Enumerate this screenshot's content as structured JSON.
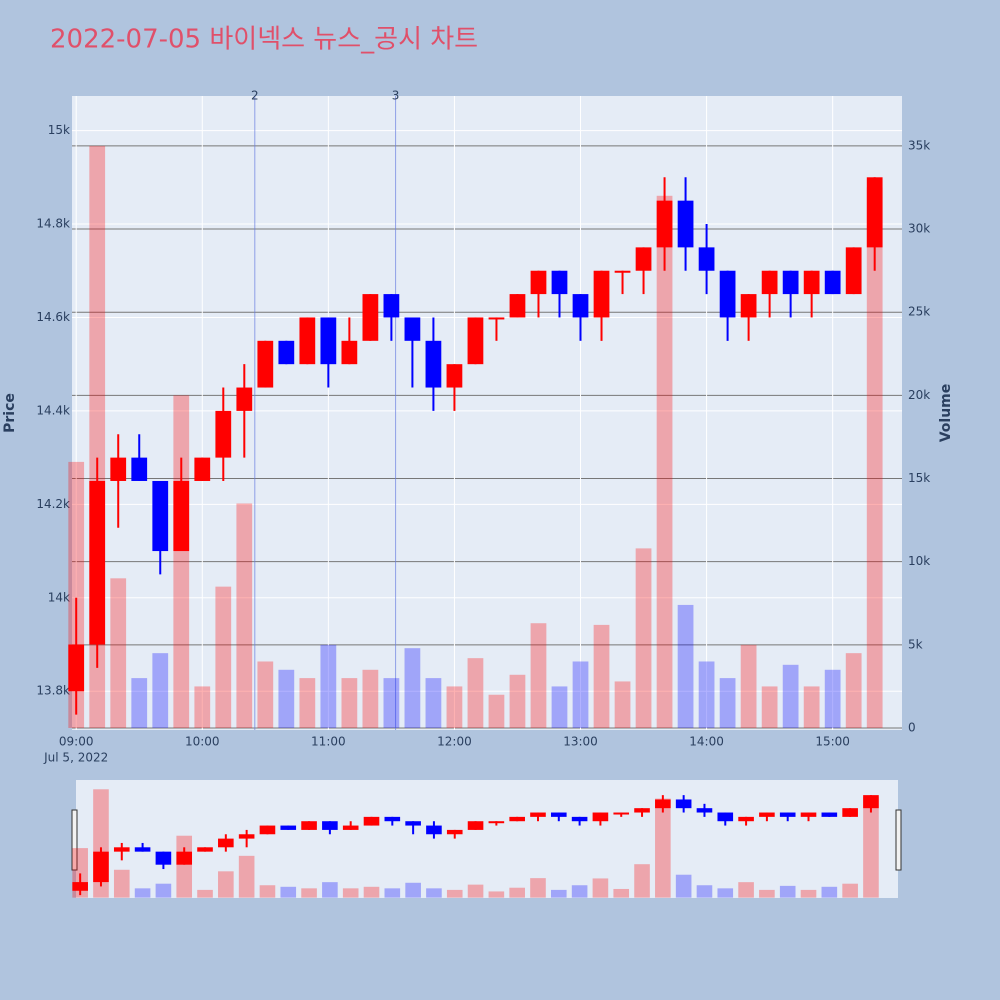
{
  "chart_data": {
    "type": "candlestick",
    "title": "2022-07-05 바이넥스 뉴스_공시 차트",
    "y_label": "Price",
    "y2_label": "Volume",
    "increasing_color": "#ff0000",
    "decreasing_color": "#0000ff",
    "x": [
      "09:00",
      "09:10",
      "09:20",
      "09:30",
      "09:40",
      "09:50",
      "10:00",
      "10:10",
      "10:20",
      "10:30",
      "10:40",
      "10:50",
      "11:00",
      "11:10",
      "11:20",
      "11:30",
      "11:40",
      "11:50",
      "12:00",
      "12:10",
      "12:20",
      "12:30",
      "12:40",
      "12:50",
      "13:00",
      "13:10",
      "13:20",
      "13:30",
      "13:40",
      "13:50",
      "14:00",
      "14:10",
      "14:20",
      "14:30",
      "14:40",
      "14:50",
      "15:00",
      "15:10",
      "15:20"
    ],
    "open": [
      13800,
      13900,
      14250,
      14300,
      14250,
      14100,
      14250,
      14300,
      14400,
      14450,
      14550,
      14500,
      14600,
      14500,
      14550,
      14650,
      14600,
      14550,
      14450,
      14500,
      14600,
      14600,
      14650,
      14700,
      14650,
      14600,
      14700,
      14700,
      14750,
      14850,
      14750,
      14700,
      14600,
      14650,
      14700,
      14650,
      14700,
      14650,
      14750
    ],
    "high": [
      14000,
      14300,
      14350,
      14350,
      14250,
      14300,
      14300,
      14450,
      14500,
      14550,
      14550,
      14600,
      14600,
      14600,
      14650,
      14650,
      14600,
      14600,
      14500,
      14600,
      14600,
      14650,
      14700,
      14700,
      14650,
      14700,
      14700,
      14750,
      14900,
      14900,
      14800,
      14700,
      14650,
      14700,
      14700,
      14700,
      14700,
      14750,
      14900
    ],
    "low": [
      13750,
      13850,
      14150,
      14250,
      14050,
      14100,
      14250,
      14250,
      14300,
      14450,
      14500,
      14500,
      14450,
      14500,
      14550,
      14550,
      14450,
      14400,
      14400,
      14500,
      14550,
      14600,
      14600,
      14600,
      14550,
      14550,
      14650,
      14650,
      14700,
      14700,
      14650,
      14550,
      14550,
      14600,
      14600,
      14600,
      14650,
      14650,
      14700
    ],
    "close": [
      13900,
      14250,
      14300,
      14250,
      14100,
      14250,
      14300,
      14400,
      14450,
      14550,
      14500,
      14600,
      14500,
      14550,
      14650,
      14600,
      14550,
      14450,
      14500,
      14600,
      14600,
      14650,
      14700,
      14650,
      14600,
      14700,
      14700,
      14750,
      14850,
      14750,
      14700,
      14600,
      14650,
      14700,
      14650,
      14700,
      14650,
      14750,
      14900
    ],
    "volume": [
      16000,
      35000,
      9000,
      3000,
      4500,
      20000,
      2500,
      8500,
      13500,
      4000,
      3500,
      3000,
      5000,
      3000,
      3500,
      3000,
      4800,
      3000,
      2500,
      4200,
      2000,
      3200,
      6300,
      2500,
      4000,
      6200,
      2800,
      10800,
      32000,
      7400,
      4000,
      3000,
      5000,
      2500,
      3800,
      2500,
      3500,
      4500,
      32500
    ],
    "xlim": [
      "08:58",
      "15:33"
    ],
    "xticks": [
      "09:00",
      "10:00",
      "11:00",
      "12:00",
      "13:00",
      "14:00",
      "15:00"
    ],
    "x_date_label": "Jul 5, 2022",
    "ylim": [
      13717,
      15074
    ],
    "yticks": [
      {
        "value": 13800,
        "label": "13.8k"
      },
      {
        "value": 14000,
        "label": "14k"
      },
      {
        "value": 14200,
        "label": "14.2k"
      },
      {
        "value": 14400,
        "label": "14.4k"
      },
      {
        "value": 14600,
        "label": "14.6k"
      },
      {
        "value": 14800,
        "label": "14.8k"
      },
      {
        "value": 15000,
        "label": "15k"
      }
    ],
    "y2lim": [
      -120,
      38000
    ],
    "y2ticks": [
      0,
      {
        "value": 5000,
        "label": "5k"
      },
      {
        "value": 10000,
        "label": "10k"
      },
      {
        "value": 15000,
        "label": "15k"
      },
      {
        "value": 20000,
        "label": "20k"
      },
      {
        "value": 25000,
        "label": "25k"
      },
      {
        "value": 30000,
        "label": "30k"
      },
      {
        "value": 35000,
        "label": "35k"
      }
    ],
    "annotations": [
      {
        "x": "10:25",
        "text": "2"
      },
      {
        "x": "11:32",
        "text": "3"
      }
    ],
    "grid": true,
    "rangeslider": true
  }
}
